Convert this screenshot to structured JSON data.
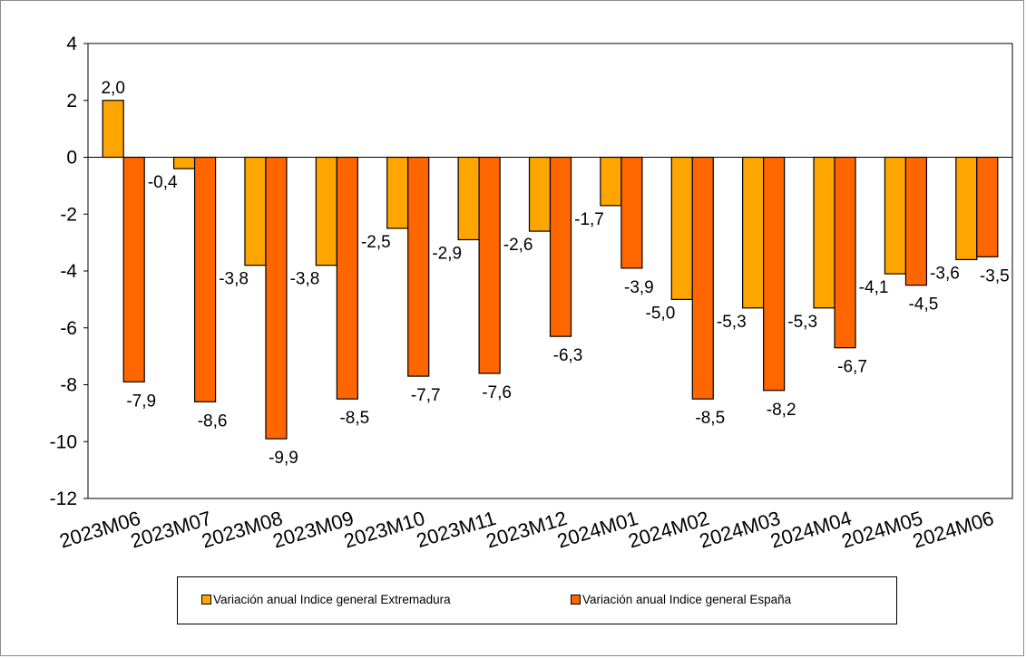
{
  "chart_data": {
    "type": "bar",
    "categories": [
      "2023M06",
      "2023M07",
      "2023M08",
      "2023M09",
      "2023M10",
      "2023M11",
      "2023M12",
      "2024M01",
      "2024M02",
      "2024M03",
      "2024M04",
      "2024M05",
      "2024M06"
    ],
    "series": [
      {
        "name": "Variación anual Indice general Extremadura",
        "color": "#FFA500",
        "values": [
          2.0,
          -0.4,
          -3.8,
          -3.8,
          -2.5,
          -2.9,
          -2.6,
          -1.7,
          -5.0,
          -5.3,
          -5.3,
          -4.1,
          -3.6
        ],
        "labels": [
          "2,0",
          "-0,4",
          "-3,8",
          "-3,8",
          "-2,5",
          "-2,9",
          "-2,6",
          "-1,7",
          "-5,0",
          "-5,3",
          "-5,3",
          "-4,1",
          "-3,6"
        ]
      },
      {
        "name": "Variación anual Indice general España",
        "color": "#FF6600",
        "values": [
          -7.9,
          -8.6,
          -9.9,
          -8.5,
          -7.7,
          -7.6,
          -6.3,
          -3.9,
          -8.5,
          -8.2,
          -6.7,
          -4.5,
          -3.5
        ],
        "labels": [
          "-7,9",
          "-8,6",
          "-9,9",
          "-8,5",
          "-7,7",
          "-7,6",
          "-6,3",
          "-3,9",
          "-8,5",
          "-8,2",
          "-6,7",
          "-4,5",
          "-3,5"
        ]
      }
    ],
    "yticks": [
      "4",
      "2",
      "0",
      "-2",
      "-4",
      "-6",
      "-8",
      "-10",
      "-12"
    ],
    "ylim": [
      -12,
      4
    ],
    "grid": false,
    "legend_position": "bottom",
    "title": "",
    "xlabel": "",
    "ylabel": ""
  }
}
